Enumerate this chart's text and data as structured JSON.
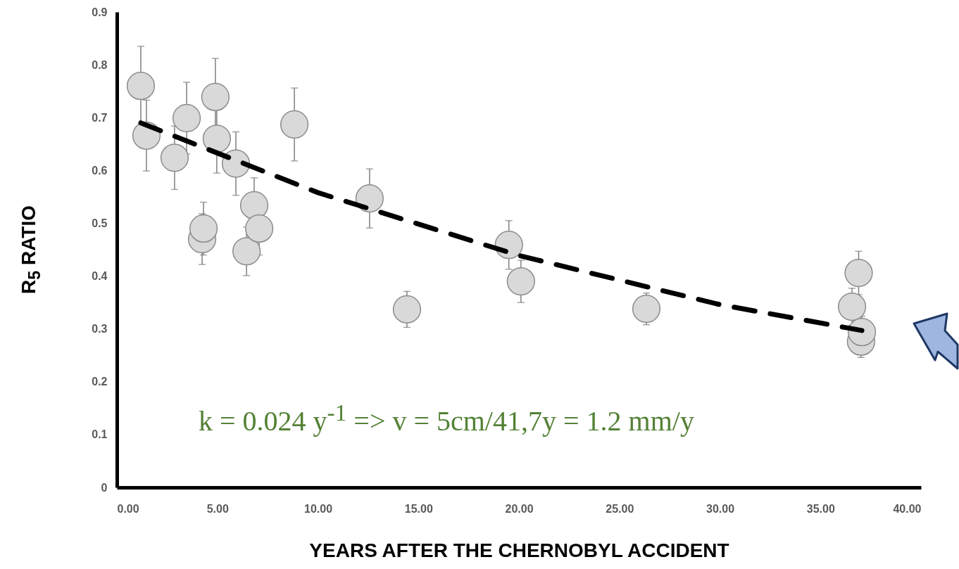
{
  "chart_data": {
    "type": "scatter",
    "xlabel": "YEARS AFTER THE CHERNOBYL ACCIDENT",
    "ylabel": "R$_{5}$ RATIO",
    "annotations": [
      "k = 0.024 y$^{-1}$ => v = 5cm/41,7y = 1.2 mm/y"
    ],
    "xlim": [
      0,
      40
    ],
    "xticks": [
      {
        "value": 0,
        "label": "0.00"
      },
      {
        "value": 5,
        "label": "5.00"
      },
      {
        "value": 10,
        "label": "10.00"
      },
      {
        "value": 15,
        "label": "15.00"
      },
      {
        "value": 20,
        "label": "20.00"
      },
      {
        "value": 25,
        "label": "25.00"
      },
      {
        "value": 30,
        "label": "30.00"
      },
      {
        "value": 35,
        "label": "35.00"
      },
      {
        "value": 40,
        "label": "40.00"
      }
    ],
    "ylim": [
      0,
      0.9
    ],
    "yticks": [
      0,
      0.1,
      0.2,
      0.3,
      0.4,
      0.5,
      0.6,
      0.7,
      0.8,
      0.9
    ],
    "marker": "circle",
    "series": [
      {
        "type": "scatter",
        "color": "#d9d9d9",
        "x": [
          1.19,
          1.47,
          2.87,
          3.47,
          4.9,
          4.97,
          4.24,
          4.31,
          5.92,
          6.83,
          6.45,
          7.08,
          8.83,
          12.57,
          14.43,
          19.5,
          20.1,
          26.34,
          36.9,
          36.57,
          37.02,
          37.06
        ],
        "values": [
          0.76,
          0.666,
          0.624,
          0.699,
          0.739,
          0.66,
          0.47,
          0.49,
          0.613,
          0.534,
          0.447,
          0.49,
          0.687,
          0.547,
          0.337,
          0.459,
          0.39,
          0.338,
          0.406,
          0.342,
          0.276,
          0.294
        ],
        "errors": [
          0.075,
          0.067,
          0.06,
          0.068,
          0.073,
          0.065,
          0.048,
          0.05,
          0.06,
          0.052,
          0.046,
          0.05,
          0.069,
          0.056,
          0.034,
          0.046,
          0.04,
          0.03,
          0.041,
          0.035,
          0.03,
          0.03
        ]
      },
      {
        "type": "line",
        "color": "#000000",
        "line_style": "dashed",
        "marker": "none",
        "x": [
          1.19,
          10,
          20,
          30,
          37.06
        ],
        "values": [
          0.69,
          0.558,
          0.439,
          0.346,
          0.297
        ]
      }
    ]
  }
}
